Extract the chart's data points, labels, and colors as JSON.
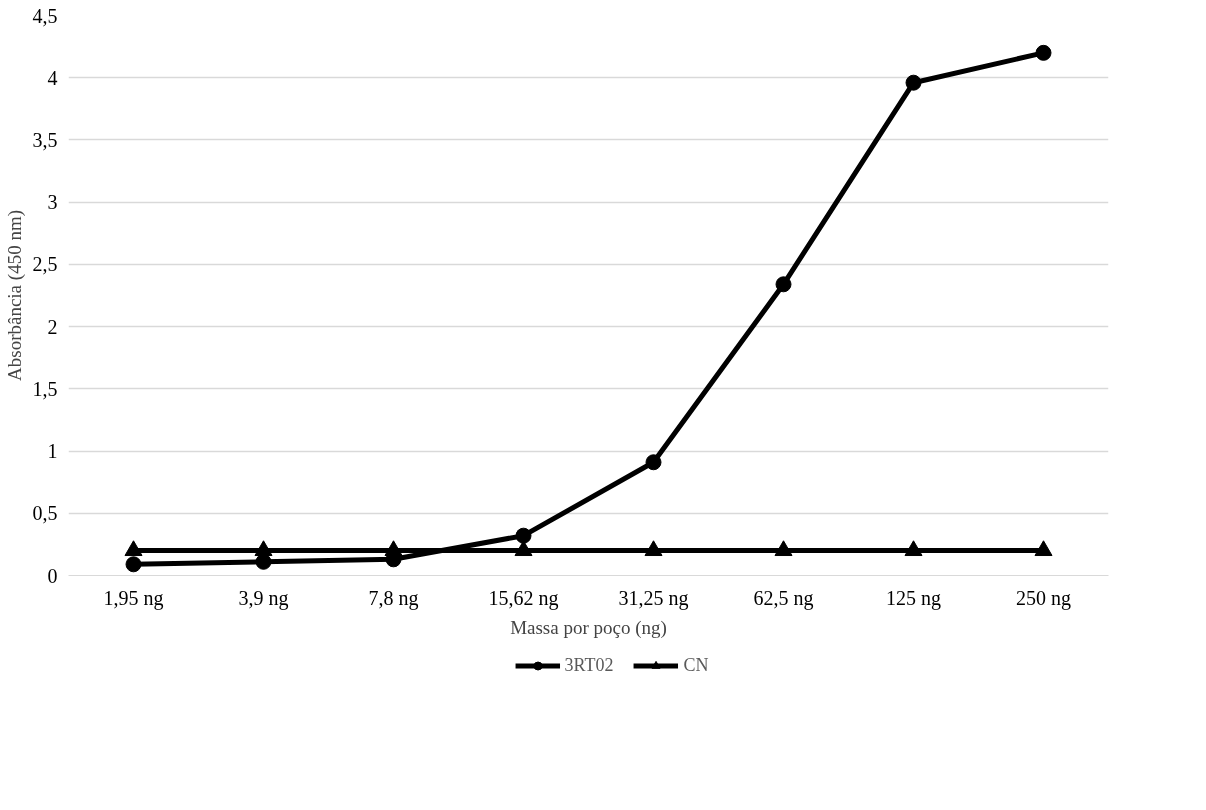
{
  "chart_data": {
    "type": "line",
    "xlabel": "Massa por poço (ng)",
    "ylabel": "Absorbância (450 nm)",
    "categories": [
      "1,95 ng",
      "3,9 ng",
      "7,8 ng",
      "15,62 ng",
      "31,25 ng",
      "62,5 ng",
      "125 ng",
      "250 ng"
    ],
    "series": [
      {
        "name": "3RT02",
        "color": "#000000",
        "marker": "circle",
        "values": [
          0.09,
          0.11,
          0.13,
          0.32,
          0.91,
          2.34,
          3.96,
          4.2
        ]
      },
      {
        "name": "CN",
        "color": "#000000",
        "marker": "triangle",
        "values": [
          0.2,
          0.2,
          0.2,
          0.2,
          0.2,
          0.2,
          0.2,
          0.2
        ]
      }
    ],
    "ylim": [
      0,
      4.5
    ],
    "yticks": [
      0,
      {
        "value": 0.5,
        "label": "0,5"
      },
      1,
      {
        "value": 1.5,
        "label": "1,5"
      },
      2,
      {
        "value": 2.5,
        "label": "2,5"
      },
      3,
      {
        "value": 3.5,
        "label": "3,5"
      },
      4,
      {
        "value": 4.5,
        "label": "4,5"
      }
    ],
    "grid": "y",
    "legend": "bottom",
    "line_style": "solid"
  }
}
